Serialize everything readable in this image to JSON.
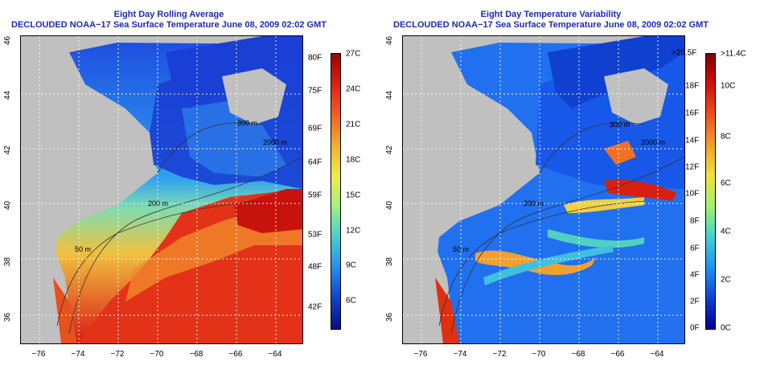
{
  "left": {
    "title": "Eight Day Rolling Average",
    "subtitle": "DECLOUDED NOAA−17 Sea Surface Temperature June 08, 2009 02:02 GMT",
    "colorbar": {
      "fahrenheit": [
        "80F",
        "75F",
        "69F",
        "64F",
        "59F",
        "53F",
        "48F",
        "42F"
      ],
      "celsius": [
        "27C",
        "24C",
        "21C",
        "18C",
        "15C",
        "12C",
        "9C",
        "6C"
      ]
    },
    "contours": [
      "200 m",
      "300 m",
      "2000 m",
      "200 m",
      "50 m",
      "50 m"
    ]
  },
  "right": {
    "title": "Eight Day Temperature Variability",
    "subtitle": "DECLOUDED NOAA−17 Sea Surface Temperature June 08, 2009 02:02 GMT",
    "colorbar": {
      "fahrenheit": [
        ">20.5F",
        "18F",
        "16F",
        "14F",
        "12F",
        "10F",
        "8F",
        "6F",
        "4F",
        "2F",
        "0F"
      ],
      "celsius": [
        ">11.4C",
        "10C",
        "8C",
        "6C",
        "4C",
        "2C",
        "0C"
      ]
    },
    "contours": [
      "200 m",
      "300 m",
      "2000 m",
      "200 m",
      "50 m"
    ]
  },
  "axes": {
    "x_ticks": [
      "−76",
      "−74",
      "−72",
      "−70",
      "−68",
      "−66",
      "−64"
    ],
    "y_ticks": [
      "46",
      "44",
      "42",
      "40",
      "38",
      "36"
    ]
  },
  "colors": {
    "title": "#1e2ab4",
    "land": "#c0c0c0"
  }
}
